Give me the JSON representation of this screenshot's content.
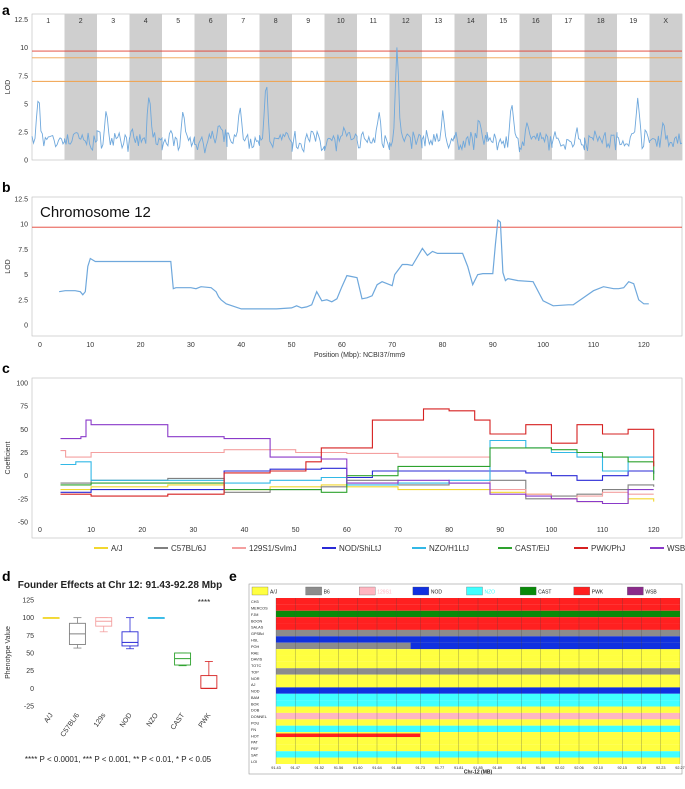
{
  "chart_data": [
    {
      "panel": "a",
      "type": "line",
      "title": "",
      "xlabel": "",
      "ylabel": "LOD",
      "ylim": [
        0,
        13
      ],
      "yticks": [
        0,
        2.5,
        5,
        7.5,
        10,
        12.5
      ],
      "chromosomes": [
        "1",
        "2",
        "3",
        "4",
        "5",
        "6",
        "7",
        "8",
        "9",
        "10",
        "11",
        "12",
        "13",
        "14",
        "15",
        "16",
        "17",
        "18",
        "19",
        "X"
      ],
      "thresholds": [
        {
          "value": 9.7,
          "color": "#e23b2e"
        },
        {
          "value": 9.1,
          "color": "#f1a14a"
        },
        {
          "value": 7.0,
          "color": "#f1a14a"
        }
      ],
      "series": [
        {
          "name": "LOD",
          "color": "#6fa8dc",
          "chrom_peaks": [
            5.3,
            2.6,
            4.2,
            5.6,
            4.6,
            3.0,
            4.5,
            6.6,
            2.4,
            2.6,
            4.2,
            10.3,
            4.2,
            3.8,
            4.7,
            3.2,
            2.6,
            2.8,
            5.9,
            3.2
          ]
        }
      ]
    },
    {
      "panel": "b",
      "type": "line",
      "title": "Chromosome 12",
      "xlabel": "Position (Mbp): NCBI37/mm9",
      "ylabel": "LOD",
      "xlim": [
        0,
        127
      ],
      "ylim": [
        0,
        12.5
      ],
      "xticks": [
        0,
        10,
        20,
        30,
        40,
        50,
        60,
        70,
        80,
        90,
        100,
        110,
        120
      ],
      "yticks": [
        0,
        2.5,
        5,
        7.5,
        10,
        12.5
      ],
      "threshold": {
        "value": 9.7,
        "color": "#e23b2e"
      },
      "series": [
        {
          "name": "LOD",
          "color": "#6fa8dc",
          "x": [
            3.8,
            5,
            7,
            8,
            8.5,
            9,
            9.5,
            10,
            11,
            15,
            20,
            26,
            26.5,
            27,
            30,
            31,
            32,
            34,
            35,
            35.5,
            36,
            37,
            40,
            45,
            47,
            50,
            51,
            52,
            53,
            54,
            55,
            56,
            57,
            58,
            59,
            60,
            61,
            62,
            63,
            64,
            65,
            66,
            67,
            68,
            70,
            70.5,
            72,
            73,
            74,
            76,
            77,
            78,
            79,
            80,
            81,
            84,
            85,
            86,
            87,
            88,
            89,
            90,
            90.5,
            91,
            91.5,
            92,
            92.5,
            93,
            95,
            98,
            100,
            102,
            105,
            106,
            108,
            110,
            112,
            114,
            115,
            116,
            117,
            118,
            119,
            120,
            121
          ],
          "y": [
            3.3,
            3.4,
            3.4,
            3.3,
            3.0,
            3.3,
            5.8,
            6.6,
            6.3,
            6.3,
            6.3,
            6.3,
            3.6,
            3.7,
            3.7,
            3.6,
            3.8,
            3.7,
            3.3,
            2.8,
            2.5,
            2.1,
            1.6,
            1.6,
            1.6,
            1.7,
            1.9,
            1.7,
            1.8,
            2.0,
            3.3,
            2.4,
            2.5,
            2.3,
            2.6,
            3.8,
            4.9,
            4.8,
            4.7,
            2.6,
            2.7,
            2.9,
            4.0,
            4.3,
            3.9,
            5.0,
            6.0,
            6.0,
            5.9,
            7.6,
            6.9,
            7.3,
            7.1,
            7.1,
            7.1,
            7.1,
            5.8,
            4.0,
            5.0,
            5.1,
            5.1,
            5.1,
            8.0,
            10.4,
            10.2,
            5.2,
            4.4,
            4.6,
            4.4,
            4.3,
            2.4,
            1.9,
            2.0,
            2.0,
            2.7,
            3.4,
            3.8,
            3.6,
            3.6,
            3.7,
            4.3,
            4.1,
            2.5,
            2.1,
            2.1
          ]
        }
      ]
    },
    {
      "panel": "c",
      "type": "line",
      "title": "",
      "xlabel": "",
      "ylabel": "Coefficient",
      "xlim": [
        0,
        123
      ],
      "ylim": [
        -50,
        100
      ],
      "xticks": [
        0,
        10,
        20,
        30,
        40,
        50,
        60,
        70,
        80,
        90,
        100,
        110,
        120
      ],
      "yticks": [
        -50,
        -25,
        0,
        25,
        50,
        75,
        100
      ],
      "series": [
        {
          "name": "A/J",
          "color": "#f2d72f",
          "x": [
            4,
            10,
            25,
            36,
            45,
            55,
            60,
            70,
            80,
            88,
            95,
            100,
            105,
            110,
            115,
            120
          ],
          "y": [
            -15,
            -12,
            -10,
            -15,
            -12,
            -10,
            -12,
            -15,
            -15,
            -18,
            -20,
            -25,
            -28,
            -30,
            -25,
            -28
          ]
        },
        {
          "name": "C57BL/6J",
          "color": "#808080",
          "x": [
            4,
            10,
            25,
            36,
            45,
            55,
            60,
            70,
            80,
            88,
            95,
            100,
            105,
            110,
            115,
            120
          ],
          "y": [
            -8,
            -5,
            -3,
            -18,
            -15,
            -12,
            -5,
            -10,
            -8,
            -5,
            -25,
            -22,
            -20,
            -15,
            -10,
            -12
          ]
        },
        {
          "name": "129S1/SvImJ",
          "color": "#f4a0a0",
          "x": [
            4,
            5,
            10,
            25,
            36,
            50,
            60,
            70,
            80,
            88,
            95,
            100,
            105,
            110,
            115,
            120
          ],
          "y": [
            27,
            20,
            25,
            25,
            28,
            25,
            24,
            20,
            20,
            -15,
            -20,
            -25,
            -22,
            -18,
            -20,
            -20
          ]
        },
        {
          "name": "NOD/ShiLtJ",
          "color": "#2a2ad6",
          "x": [
            4,
            10,
            25,
            36,
            45,
            55,
            60,
            65,
            75,
            88,
            95,
            100,
            105,
            110,
            115,
            120
          ],
          "y": [
            -18,
            -15,
            -15,
            5,
            7,
            8,
            -2,
            5,
            5,
            5,
            3,
            0,
            -5,
            0,
            5,
            2
          ]
        },
        {
          "name": "NZO/H1LtJ",
          "color": "#32b8e6",
          "x": [
            4,
            7,
            10,
            25,
            36,
            45,
            55,
            60,
            70,
            80,
            88,
            95,
            100,
            105,
            110,
            115,
            120
          ],
          "y": [
            12,
            15,
            -5,
            -5,
            -8,
            -5,
            -2,
            -10,
            -8,
            -5,
            38,
            30,
            25,
            20,
            5,
            20,
            20
          ]
        },
        {
          "name": "CAST/EiJ",
          "color": "#2ea22e",
          "x": [
            4,
            10,
            25,
            36,
            45,
            55,
            60,
            70,
            80,
            88,
            95,
            100,
            105,
            110,
            115,
            120
          ],
          "y": [
            -10,
            -8,
            -8,
            -15,
            -15,
            -18,
            0,
            10,
            10,
            30,
            30,
            28,
            25,
            20,
            15,
            -5
          ]
        },
        {
          "name": "PWK/PhJ",
          "color": "#d62020",
          "x": [
            4,
            10,
            25,
            36,
            45,
            50,
            52,
            55,
            60,
            65,
            70,
            75,
            80,
            85,
            88,
            95,
            100,
            105,
            110,
            115,
            120
          ],
          "y": [
            -20,
            -22,
            -20,
            3,
            5,
            5,
            15,
            30,
            30,
            60,
            60,
            72,
            70,
            60,
            45,
            55,
            35,
            55,
            45,
            50,
            10
          ]
        },
        {
          "name": "WSB/EiJ",
          "color": "#8a3ac9",
          "x": [
            4,
            8,
            9,
            10,
            25,
            36,
            45,
            55,
            60,
            70,
            80,
            88,
            95,
            100,
            105,
            110,
            115,
            120
          ],
          "y": [
            40,
            42,
            60,
            55,
            42,
            40,
            20,
            18,
            -8,
            -5,
            -8,
            -20,
            -22,
            -25,
            -28,
            -30,
            -15,
            -15
          ]
        }
      ],
      "legend": [
        "A/J",
        "C57BL/6J",
        "129S1/SvImJ",
        "NOD/ShiLtJ",
        "NZO/H1LtJ",
        "CAST/EiJ",
        "PWK/PhJ",
        "WSB/EiJ"
      ]
    },
    {
      "panel": "d",
      "type": "box",
      "title": "Founder Effects at Chr 12: 91.43-92.28 Mbp",
      "xlabel": "",
      "ylabel": "Phenotype Value",
      "ylim": [
        -25,
        125
      ],
      "yticks": [
        -25,
        0,
        25,
        50,
        75,
        100,
        125
      ],
      "categories": [
        "A/J",
        "C57BL/6",
        "129s",
        "NOD",
        "NZO",
        "CAST",
        "PWK"
      ],
      "colors": [
        "#f2d72f",
        "#808080",
        "#f4a0a0",
        "#2a2ad6",
        "#32b8e6",
        "#2ea22e",
        "#d62020"
      ],
      "boxes": [
        {
          "min": 100,
          "q1": 100,
          "median": 100,
          "q3": 100,
          "max": 100
        },
        {
          "min": 57,
          "q1": 62,
          "median": 77,
          "q3": 92,
          "max": 100
        },
        {
          "min": 80,
          "q1": 88,
          "median": 95,
          "q3": 100,
          "max": 100
        },
        {
          "min": 56,
          "q1": 60,
          "median": 65,
          "q3": 80,
          "max": 100
        },
        {
          "min": 100,
          "q1": 100,
          "median": 100,
          "q3": 100,
          "max": 100
        },
        {
          "min": 32,
          "q1": 33,
          "median": 42,
          "q3": 50,
          "max": 50
        },
        {
          "min": 0,
          "q1": 0,
          "median": 0,
          "q3": 18,
          "max": 38
        }
      ],
      "significance": "****",
      "footnote": "**** P < 0.0001, *** P < 0.001, ** P < 0.01, * P < 0.05"
    },
    {
      "panel": "e",
      "type": "heatmap",
      "xlabel": "Chr-12 (MB)",
      "legend": [
        "A/J",
        "B6",
        "129S1",
        "NOD",
        "NZO",
        "CAST",
        "PWK",
        "WSB"
      ],
      "legend_colors": [
        "#ffff40",
        "#8c8c8c",
        "#ffb6c1",
        "#1030e0",
        "#40ffff",
        "#0a8a0a",
        "#ff2020",
        "#8a2a8a"
      ],
      "rows": [
        "CH3",
        "MERCOS",
        "FJM",
        "BOON",
        "SALAS",
        "GPSBd",
        "HSL",
        "POH",
        "RAE",
        "DAVIS",
        "TOTC",
        "TOP",
        "NOR",
        "AJ",
        "NOD",
        "BAM",
        "BOK",
        "DOB",
        "DONNEL",
        "POU",
        "FN",
        "HOT",
        "PAT",
        "PEF",
        "SAT",
        "LOI"
      ],
      "row_haplotypes": [
        6,
        6,
        5,
        6,
        6,
        1,
        3,
        1,
        0,
        0,
        0,
        1,
        0,
        0,
        3,
        4,
        4,
        0,
        2,
        0,
        4,
        0,
        0,
        0,
        4,
        0
      ],
      "partial_rows": [
        {
          "row": "POH",
          "haplotype": 3,
          "from": 91.71,
          "to": 92.27
        },
        {
          "row": "HOT",
          "haplotype": 6,
          "from": 91.43,
          "to": 91.73
        }
      ],
      "x_ticks": [
        "91.43",
        "91.47",
        "91.52",
        "91.56",
        "91.60",
        "91.64",
        "91.68",
        "91.73",
        "91.77",
        "91.81",
        "91.85",
        "91.89",
        "91.94",
        "91.98",
        "92.02",
        "92.06",
        "92.10",
        "92.15",
        "92.19",
        "92.23",
        "92.27"
      ]
    }
  ],
  "panel_labels": {
    "a": "a",
    "b": "b",
    "c": "c",
    "d": "d",
    "e": "e"
  }
}
